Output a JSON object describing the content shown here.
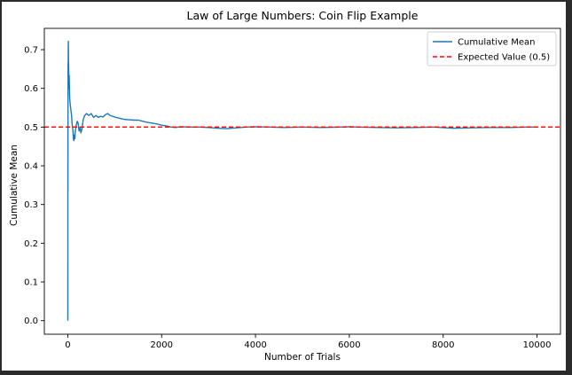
{
  "chart_data": {
    "type": "line",
    "title": "Law of Large Numbers: Coin Flip Example",
    "xlabel": "Number of Trials",
    "ylabel": "Cumulative Mean",
    "xlim": [
      -500,
      10500
    ],
    "ylim": [
      -0.035,
      0.755
    ],
    "xticks": [
      0,
      2000,
      4000,
      6000,
      8000,
      10000
    ],
    "yticks": [
      0.0,
      0.1,
      0.2,
      0.3,
      0.4,
      0.5,
      0.6,
      0.7
    ],
    "ytick_labels": [
      "0.0",
      "0.1",
      "0.2",
      "0.3",
      "0.4",
      "0.5",
      "0.6",
      "0.7"
    ],
    "grid": false,
    "legend_position": "top-right",
    "series": [
      {
        "name": "Cumulative Mean",
        "color": "#1f77b4",
        "style": "solid",
        "x": [
          1,
          2,
          3,
          4,
          5,
          6,
          8,
          10,
          12,
          15,
          20,
          25,
          30,
          40,
          50,
          60,
          70,
          80,
          90,
          100,
          110,
          120,
          130,
          140,
          150,
          160,
          180,
          200,
          220,
          240,
          260,
          280,
          300,
          330,
          360,
          400,
          450,
          500,
          550,
          600,
          650,
          700,
          750,
          800,
          850,
          900,
          950,
          1000,
          1100,
          1200,
          1300,
          1400,
          1500,
          1600,
          1700,
          1800,
          1900,
          2000,
          2100,
          2200,
          2300,
          2400,
          2600,
          2800,
          3000,
          3200,
          3400,
          3600,
          3800,
          4000,
          4300,
          4600,
          5000,
          5400,
          5800,
          6000,
          6200,
          6600,
          7000,
          7400,
          7800,
          8200,
          8600,
          9000,
          9400,
          9800,
          10000
        ],
        "y": [
          0.0,
          0.5,
          0.333,
          0.5,
          0.6,
          0.667,
          0.625,
          0.7,
          0.722,
          0.667,
          0.65,
          0.6,
          0.633,
          0.575,
          0.56,
          0.55,
          0.54,
          0.53,
          0.51,
          0.5,
          0.49,
          0.47,
          0.465,
          0.48,
          0.47,
          0.49,
          0.505,
          0.515,
          0.51,
          0.49,
          0.5,
          0.485,
          0.495,
          0.52,
          0.53,
          0.535,
          0.53,
          0.535,
          0.525,
          0.53,
          0.525,
          0.528,
          0.526,
          0.532,
          0.535,
          0.53,
          0.528,
          0.526,
          0.523,
          0.52,
          0.519,
          0.518,
          0.518,
          0.515,
          0.512,
          0.51,
          0.508,
          0.505,
          0.503,
          0.5,
          0.499,
          0.501,
          0.5,
          0.5,
          0.499,
          0.497,
          0.496,
          0.498,
          0.5,
          0.501,
          0.5,
          0.499,
          0.5,
          0.499,
          0.5,
          0.501,
          0.5,
          0.499,
          0.498,
          0.499,
          0.5,
          0.497,
          0.498,
          0.499,
          0.499,
          0.5,
          0.5
        ]
      },
      {
        "name": "Expected Value (0.5)",
        "color": "#ff0000",
        "style": "dashed",
        "y_constant": 0.5
      }
    ]
  }
}
